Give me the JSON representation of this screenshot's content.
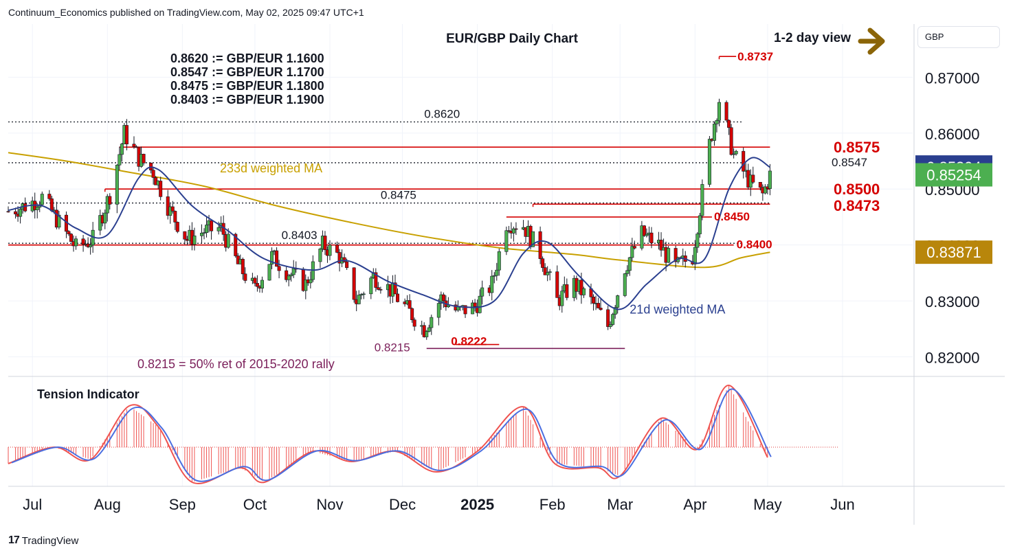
{
  "header": {
    "published": "Continuum_Economics published on TradingView.com, May 02, 2025 09:47 UTC+1"
  },
  "footer": {
    "brand": "TradingView"
  },
  "currency": "GBP",
  "chart_data": {
    "type": "candlestick",
    "title": "EUR/GBP Daily Chart",
    "view_label": "1-2 day view",
    "ylim": [
      0.8165,
      0.8795
    ],
    "x_range": [
      "2024-06-21",
      "2025-06-30"
    ],
    "x_ticks": [
      {
        "label": "Jul",
        "date": "2024-07-01"
      },
      {
        "label": "Aug",
        "date": "2024-08-01"
      },
      {
        "label": "Sep",
        "date": "2024-09-01"
      },
      {
        "label": "Oct",
        "date": "2024-10-01"
      },
      {
        "label": "Nov",
        "date": "2024-11-01"
      },
      {
        "label": "Dec",
        "date": "2024-12-01"
      },
      {
        "label": "2025",
        "date": "2025-01-01",
        "bold": true
      },
      {
        "label": "Feb",
        "date": "2025-02-01"
      },
      {
        "label": "Mar",
        "date": "2025-03-01"
      },
      {
        "label": "Apr",
        "date": "2025-04-01"
      },
      {
        "label": "May",
        "date": "2025-05-01"
      },
      {
        "label": "Jun",
        "date": "2025-06-01"
      }
    ],
    "y_ticks": [
      {
        "label": "0.87000",
        "value": 0.87
      },
      {
        "label": "0.86000",
        "value": 0.86
      },
      {
        "label": "0.85000",
        "value": 0.85
      },
      {
        "label": "0.84000",
        "value": 0.84
      },
      {
        "label": "0.83000",
        "value": 0.83
      },
      {
        "label": "0.82000",
        "value": 0.82
      }
    ],
    "price_badges": [
      {
        "label": "0.85394",
        "value": 0.85394,
        "color": "#2a3f8f"
      },
      {
        "label": "0.85254",
        "value": 0.85254,
        "color": "#4caf50"
      },
      {
        "label": "0.83871",
        "value": 0.83871,
        "color": "#b8860b"
      }
    ],
    "conversion_table": [
      "0.8620 := GBP/EUR 1.1600",
      "0.8547 := GBP/EUR 1.1700",
      "0.8475 := GBP/EUR 1.1800",
      "0.8403 := GBP/EUR 1.1900"
    ],
    "levels": [
      {
        "label": "0.8620",
        "value": 0.862,
        "style": "dotted",
        "from": "2024-06-21",
        "to": "2025-04-21"
      },
      {
        "label": "0.8547",
        "value": 0.8547,
        "style": "dotted",
        "from": "2024-06-21",
        "to": "2025-04-21"
      },
      {
        "label": "0.8475",
        "value": 0.8475,
        "style": "dotted",
        "from": "2024-06-21",
        "to": "2025-05-02"
      },
      {
        "label": "0.8403",
        "value": 0.8403,
        "style": "dotted",
        "from": "2024-06-21",
        "to": "2025-04-21"
      },
      {
        "label": "0.8575",
        "value": 0.8575,
        "style": "red",
        "from": "2024-08-06",
        "to": "2025-05-02"
      },
      {
        "label": "0.8500",
        "value": 0.85,
        "style": "red",
        "from": "2024-07-31",
        "to": "2025-05-02"
      },
      {
        "label": "0.8473",
        "value": 0.8473,
        "style": "red",
        "from": "2025-01-24",
        "to": "2025-05-02"
      },
      {
        "label": "0.8450",
        "value": 0.845,
        "style": "red",
        "from": "2025-01-13",
        "to": "2025-04-08"
      },
      {
        "label": "0.8400",
        "value": 0.84,
        "style": "red",
        "from": "2024-06-21",
        "to": "2025-04-17"
      },
      {
        "label": "0.8737",
        "value": 0.8737,
        "style": "red",
        "from": "2025-04-11",
        "to": "2025-04-18"
      },
      {
        "label": "0.8222",
        "value": 0.8222,
        "style": "red",
        "from": "2024-12-23",
        "to": "2025-01-10"
      },
      {
        "label": "0.8215",
        "value": 0.8215,
        "style": "purple",
        "from": "2024-12-11",
        "to": "2025-03-03"
      }
    ],
    "annotations": {
      "ma233_label": "233d weighted MA",
      "ma21_label": "21d weighted MA",
      "retracement": "0.8215 = 50% ret of 2015-2020 rally",
      "tension_title": "Tension Indicator"
    },
    "series": [
      {
        "name": "EUR/GBP",
        "kind": "ohlc",
        "points": [
          {
            "date": "2024-06-21",
            "close": 0.846
          },
          {
            "date": "2024-06-28",
            "close": 0.847
          },
          {
            "date": "2024-07-05",
            "close": 0.8485
          },
          {
            "date": "2024-07-12",
            "close": 0.844
          },
          {
            "date": "2024-07-19",
            "close": 0.8395
          },
          {
            "date": "2024-07-26",
            "close": 0.841
          },
          {
            "date": "2024-08-02",
            "close": 0.849
          },
          {
            "date": "2024-08-08",
            "close": 0.86
          },
          {
            "date": "2024-08-14",
            "close": 0.8555
          },
          {
            "date": "2024-08-20",
            "close": 0.853
          },
          {
            "date": "2024-08-27",
            "close": 0.846
          },
          {
            "date": "2024-09-03",
            "close": 0.841
          },
          {
            "date": "2024-09-10",
            "close": 0.8425
          },
          {
            "date": "2024-09-17",
            "close": 0.843
          },
          {
            "date": "2024-09-24",
            "close": 0.8365
          },
          {
            "date": "2024-10-01",
            "close": 0.832
          },
          {
            "date": "2024-10-08",
            "close": 0.838
          },
          {
            "date": "2024-10-15",
            "close": 0.835
          },
          {
            "date": "2024-10-22",
            "close": 0.833
          },
          {
            "date": "2024-10-29",
            "close": 0.84
          },
          {
            "date": "2024-11-05",
            "close": 0.838
          },
          {
            "date": "2024-11-12",
            "close": 0.83
          },
          {
            "date": "2024-11-19",
            "close": 0.8345
          },
          {
            "date": "2024-11-26",
            "close": 0.832
          },
          {
            "date": "2024-12-03",
            "close": 0.8285
          },
          {
            "date": "2024-12-10",
            "close": 0.825
          },
          {
            "date": "2024-12-17",
            "close": 0.8305
          },
          {
            "date": "2024-12-24",
            "close": 0.828
          },
          {
            "date": "2024-12-31",
            "close": 0.829
          },
          {
            "date": "2025-01-07",
            "close": 0.833
          },
          {
            "date": "2025-01-13",
            "close": 0.844
          },
          {
            "date": "2025-01-20",
            "close": 0.8435
          },
          {
            "date": "2025-01-27",
            "close": 0.8385
          },
          {
            "date": "2025-02-03",
            "close": 0.83
          },
          {
            "date": "2025-02-10",
            "close": 0.833
          },
          {
            "date": "2025-02-17",
            "close": 0.83
          },
          {
            "date": "2025-02-24",
            "close": 0.8255
          },
          {
            "date": "2025-03-03",
            "close": 0.836
          },
          {
            "date": "2025-03-10",
            "close": 0.842
          },
          {
            "date": "2025-03-17",
            "close": 0.84
          },
          {
            "date": "2025-03-24",
            "close": 0.836
          },
          {
            "date": "2025-03-31",
            "close": 0.838
          },
          {
            "date": "2025-04-07",
            "close": 0.858
          },
          {
            "date": "2025-04-11",
            "close": 0.866
          },
          {
            "date": "2025-04-17",
            "close": 0.856
          },
          {
            "date": "2025-04-24",
            "close": 0.851
          },
          {
            "date": "2025-04-29",
            "close": 0.849
          },
          {
            "date": "2025-05-02",
            "close": 0.8525
          }
        ]
      },
      {
        "name": "21d weighted MA",
        "kind": "line",
        "color": "#2a3f8f",
        "points": [
          {
            "date": "2024-06-21",
            "value": 0.8462
          },
          {
            "date": "2024-07-05",
            "value": 0.847
          },
          {
            "date": "2024-07-19",
            "value": 0.843
          },
          {
            "date": "2024-08-01",
            "value": 0.8418
          },
          {
            "date": "2024-08-14",
            "value": 0.852
          },
          {
            "date": "2024-08-22",
            "value": 0.8535
          },
          {
            "date": "2024-09-05",
            "value": 0.847
          },
          {
            "date": "2024-09-20",
            "value": 0.8425
          },
          {
            "date": "2024-10-05",
            "value": 0.8375
          },
          {
            "date": "2024-10-25",
            "value": 0.8355
          },
          {
            "date": "2024-11-08",
            "value": 0.8372
          },
          {
            "date": "2024-11-25",
            "value": 0.8335
          },
          {
            "date": "2024-12-10",
            "value": 0.831
          },
          {
            "date": "2024-12-24",
            "value": 0.829
          },
          {
            "date": "2025-01-08",
            "value": 0.83
          },
          {
            "date": "2025-01-20",
            "value": 0.8385
          },
          {
            "date": "2025-01-30",
            "value": 0.8405
          },
          {
            "date": "2025-02-12",
            "value": 0.8345
          },
          {
            "date": "2025-02-28",
            "value": 0.8285
          },
          {
            "date": "2025-03-12",
            "value": 0.833
          },
          {
            "date": "2025-03-25",
            "value": 0.8375
          },
          {
            "date": "2025-04-05",
            "value": 0.8375
          },
          {
            "date": "2025-04-15",
            "value": 0.85
          },
          {
            "date": "2025-04-24",
            "value": 0.8555
          },
          {
            "date": "2025-05-02",
            "value": 0.8539
          }
        ]
      },
      {
        "name": "233d weighted MA",
        "kind": "line",
        "color": "#c8a000",
        "points": [
          {
            "date": "2024-06-21",
            "value": 0.8565
          },
          {
            "date": "2024-07-15",
            "value": 0.855
          },
          {
            "date": "2024-08-10",
            "value": 0.853
          },
          {
            "date": "2024-09-10",
            "value": 0.8505
          },
          {
            "date": "2024-10-10",
            "value": 0.847
          },
          {
            "date": "2024-11-10",
            "value": 0.844
          },
          {
            "date": "2024-12-10",
            "value": 0.8415
          },
          {
            "date": "2025-01-10",
            "value": 0.8395
          },
          {
            "date": "2025-02-10",
            "value": 0.8383
          },
          {
            "date": "2025-03-01",
            "value": 0.8373
          },
          {
            "date": "2025-04-05",
            "value": 0.836
          },
          {
            "date": "2025-04-20",
            "value": 0.8377
          },
          {
            "date": "2025-05-02",
            "value": 0.8387
          }
        ]
      },
      {
        "name": "Tension Indicator",
        "kind": "oscillator",
        "points": [
          {
            "date": "2024-06-21",
            "value": -0.4
          },
          {
            "date": "2024-07-10",
            "value": 0.0
          },
          {
            "date": "2024-07-25",
            "value": -0.3
          },
          {
            "date": "2024-08-10",
            "value": 1.0
          },
          {
            "date": "2024-08-22",
            "value": 0.5
          },
          {
            "date": "2024-09-05",
            "value": -0.85
          },
          {
            "date": "2024-09-25",
            "value": -0.5
          },
          {
            "date": "2024-10-05",
            "value": -0.85
          },
          {
            "date": "2024-10-25",
            "value": -0.1
          },
          {
            "date": "2024-11-10",
            "value": -0.35
          },
          {
            "date": "2024-11-28",
            "value": -0.1
          },
          {
            "date": "2024-12-15",
            "value": -0.6
          },
          {
            "date": "2025-01-01",
            "value": -0.1
          },
          {
            "date": "2025-01-20",
            "value": 0.98
          },
          {
            "date": "2025-02-02",
            "value": -0.4
          },
          {
            "date": "2025-02-20",
            "value": -0.5
          },
          {
            "date": "2025-03-01",
            "value": -0.7
          },
          {
            "date": "2025-03-18",
            "value": 0.7
          },
          {
            "date": "2025-04-02",
            "value": -0.05
          },
          {
            "date": "2025-04-15",
            "value": 1.5
          },
          {
            "date": "2025-05-01",
            "value": -0.25
          }
        ]
      }
    ]
  }
}
